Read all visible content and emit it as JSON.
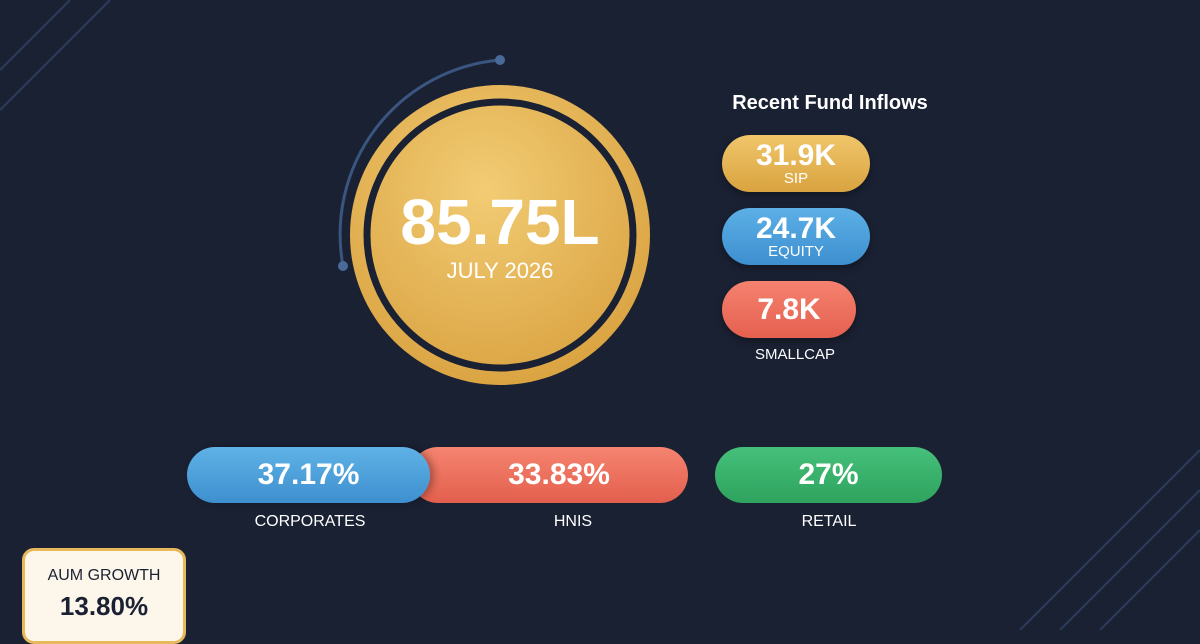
{
  "hero": {
    "value": "85.75L",
    "date": "JULY 2026"
  },
  "inflows": {
    "title": "Recent Fund Inflows",
    "items": [
      {
        "value": "31.9K",
        "label": "SIP"
      },
      {
        "value": "24.7K",
        "label": "EQUITY"
      },
      {
        "value": "7.8K",
        "label": "SMALLCAP"
      }
    ]
  },
  "split": [
    {
      "value": "37.17%",
      "label": "CORPORATES"
    },
    {
      "value": "33.83%",
      "label": "HNIS"
    },
    {
      "value": "27%",
      "label": "RETAIL"
    }
  ],
  "growth": {
    "label": "AUM GROWTH",
    "value": "13.80%"
  }
}
